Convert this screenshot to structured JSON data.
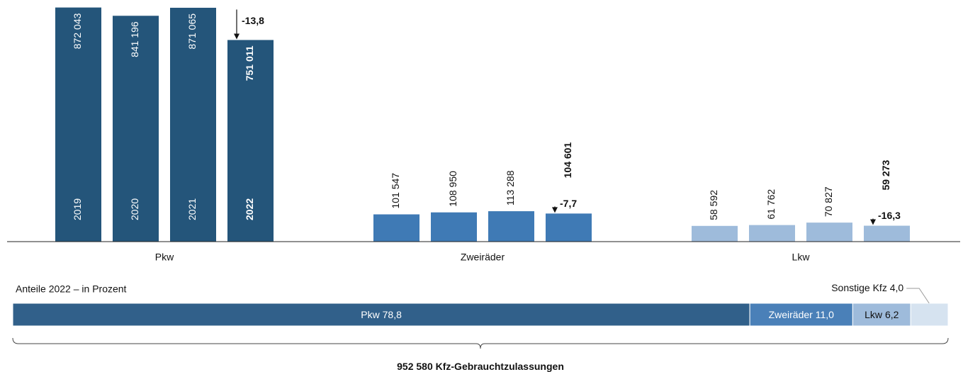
{
  "chart_data": [
    {
      "type": "bar",
      "categories": [
        "Pkw",
        "Zweiräder",
        "Lkw"
      ],
      "colors": [
        "#24557a",
        "#3f7ab5",
        "#9ebbdb"
      ],
      "series": [
        {
          "name": "2019",
          "values": [
            872043,
            101547,
            58592
          ],
          "value_labels": [
            "872 043",
            "101 547",
            "58 592"
          ]
        },
        {
          "name": "2020",
          "values": [
            841196,
            108950,
            61762
          ],
          "value_labels": [
            "841 196",
            "108 950",
            "61 762"
          ]
        },
        {
          "name": "2021",
          "values": [
            871065,
            113288,
            70827
          ],
          "value_labels": [
            "871 065",
            "113 288",
            "70 827"
          ]
        },
        {
          "name": "2022",
          "values": [
            751011,
            104601,
            59273
          ],
          "value_labels": [
            "751 011",
            "104 601",
            "59 273"
          ]
        }
      ],
      "changes": [
        -13.8,
        -7.7,
        -16.3
      ],
      "change_labels": [
        "-13,8",
        "-7,7",
        "-16,3"
      ],
      "ylim": [
        0,
        900000
      ]
    },
    {
      "type": "stacked_bar_h",
      "title": "Anteile 2022 – in Prozent",
      "categories": [
        "Pkw",
        "Zweiräder",
        "Lkw",
        "Sonstige Kfz"
      ],
      "values": [
        78.8,
        11.0,
        6.2,
        4.0
      ],
      "value_labels": [
        "78,8",
        "11,0",
        "6,2",
        "4,0"
      ],
      "colors": [
        "#31608a",
        "#4a80b8",
        "#9ebbdb",
        "#d6e3f0"
      ],
      "xlim": [
        0,
        100
      ],
      "total": 952580,
      "total_label": "952 580",
      "total_text": "Kfz-Gebrauchtzulassungen"
    }
  ]
}
